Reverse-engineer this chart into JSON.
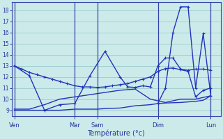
{
  "background_color": "#cceaea",
  "grid_color": "#99cccc",
  "line_color": "#2233bb",
  "ylim": [
    8.5,
    18.7
  ],
  "yticks": [
    9,
    10,
    11,
    12,
    13,
    14,
    15,
    16,
    17,
    18
  ],
  "xlabel": "Température (°c)",
  "day_labels": [
    "Ven",
    "Mar",
    "Sam",
    "Dim",
    "Lun"
  ],
  "day_x": [
    0,
    8,
    11,
    19,
    26
  ],
  "xlim": [
    -0.3,
    27.3
  ],
  "s1x": [
    0,
    1,
    2,
    3,
    4,
    5,
    6,
    7,
    8,
    9,
    10,
    11,
    12,
    13,
    14,
    15,
    16,
    17,
    18,
    19,
    20,
    21,
    22,
    23,
    24,
    25,
    26
  ],
  "s1y": [
    13,
    12.7,
    12.4,
    12.2,
    12.0,
    11.8,
    11.6,
    11.4,
    11.2,
    11.1,
    11.1,
    11.05,
    11.1,
    11.2,
    11.3,
    11.4,
    11.6,
    11.8,
    12.0,
    12.5,
    12.75,
    12.8,
    12.65,
    12.5,
    10.2,
    10.8,
    11.0
  ],
  "s2x": [
    0,
    2,
    4,
    6,
    8,
    10,
    12,
    14,
    15,
    16,
    17,
    18,
    19,
    20,
    21,
    22,
    23,
    24,
    25,
    26
  ],
  "s2y": [
    13,
    12.1,
    9.0,
    9.5,
    9.6,
    12.1,
    14.3,
    12.0,
    11.1,
    11.05,
    11.2,
    11.1,
    13.0,
    13.7,
    13.7,
    12.7,
    12.6,
    12.7,
    12.7,
    12.6
  ],
  "s3x": [
    0,
    2,
    4,
    6,
    8,
    10,
    11,
    12,
    14,
    16,
    17,
    18,
    19,
    20,
    22,
    24,
    25,
    26
  ],
  "s3y": [
    9.0,
    9.0,
    9.0,
    9.0,
    9.1,
    9.1,
    9.1,
    9.15,
    9.2,
    9.4,
    9.45,
    9.5,
    9.6,
    9.65,
    9.7,
    9.8,
    9.9,
    10.3
  ],
  "s4x": [
    0,
    2,
    4,
    6,
    8,
    10,
    12,
    14,
    16,
    18,
    20,
    22,
    24,
    26
  ],
  "s4y": [
    9.1,
    9.1,
    9.5,
    10.0,
    10.2,
    10.4,
    10.6,
    10.8,
    10.9,
    10.0,
    9.7,
    10.0,
    10.0,
    10.3
  ],
  "s5x": [
    19,
    20,
    21,
    22,
    23,
    24,
    25,
    26
  ],
  "s5y": [
    9.6,
    11.0,
    16.0,
    18.3,
    18.3,
    11.0,
    15.9,
    10.3
  ]
}
